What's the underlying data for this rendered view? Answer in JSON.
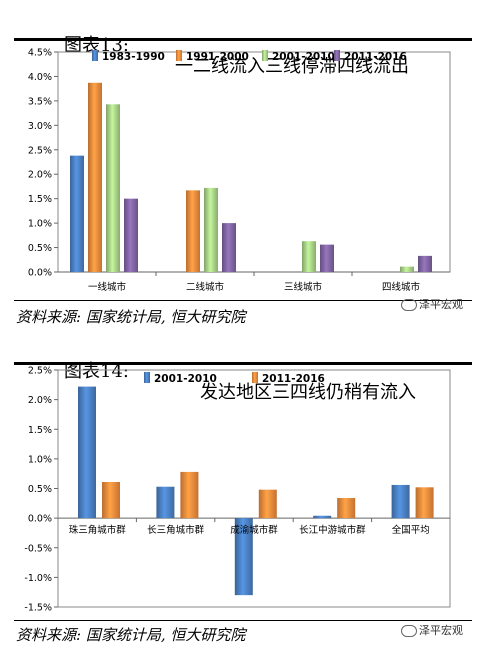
{
  "figures": [
    {
      "number": "图表13:",
      "title": "一二线流入三线停滞四线流出",
      "source": "资料来源: 国家统计局, 恒大研究院",
      "watermark": "泽平宏观"
    },
    {
      "number": "图表14:",
      "title": "发达地区三四线仍稍有流入",
      "source": "资料来源: 国家统计局, 恒大研究院",
      "watermark": "泽平宏观"
    }
  ],
  "chart_data": [
    {
      "type": "bar",
      "title": "一二线流入三线停滞四线流出",
      "categories": [
        "一线城市",
        "二线城市",
        "三线城市",
        "四线城市"
      ],
      "series": [
        {
          "name": "1983-1990",
          "color": "#4a7fc1",
          "values": [
            2.38,
            0,
            0,
            0
          ]
        },
        {
          "name": "1991-2000",
          "color": "#f08a3c",
          "values": [
            3.87,
            1.67,
            0,
            0
          ]
        },
        {
          "name": "2001-2010",
          "color": "#a7d086",
          "values": [
            3.43,
            1.72,
            0.63,
            0.11
          ]
        },
        {
          "name": "2011-2016",
          "color": "#8064a2",
          "values": [
            1.5,
            1.0,
            0.56,
            0.33
          ]
        }
      ],
      "ylim": [
        0,
        4.5
      ],
      "yticks": [
        "0.0%",
        "0.5%",
        "1.0%",
        "1.5%",
        "2.0%",
        "2.5%",
        "3.0%",
        "3.5%",
        "4.0%",
        "4.5%"
      ],
      "legend": "top"
    },
    {
      "type": "bar",
      "title": "发达地区三四线仍稍有流入",
      "categories": [
        "珠三角城市群",
        "长三角城市群",
        "成渝城市群",
        "长江中游城市群",
        "全国平均"
      ],
      "series": [
        {
          "name": "2001-2010",
          "color": "#4a7fc1",
          "values": [
            2.22,
            0.53,
            -1.3,
            0.04,
            0.56
          ]
        },
        {
          "name": "2011-2016",
          "color": "#f08a3c",
          "values": [
            0.61,
            0.78,
            0.48,
            0.34,
            0.52
          ]
        }
      ],
      "ylim": [
        -1.5,
        2.5
      ],
      "yticks": [
        "-1.5%",
        "-1.0%",
        "-0.5%",
        "0.0%",
        "0.5%",
        "1.0%",
        "1.5%",
        "2.0%",
        "2.5%"
      ],
      "legend": "top"
    }
  ]
}
